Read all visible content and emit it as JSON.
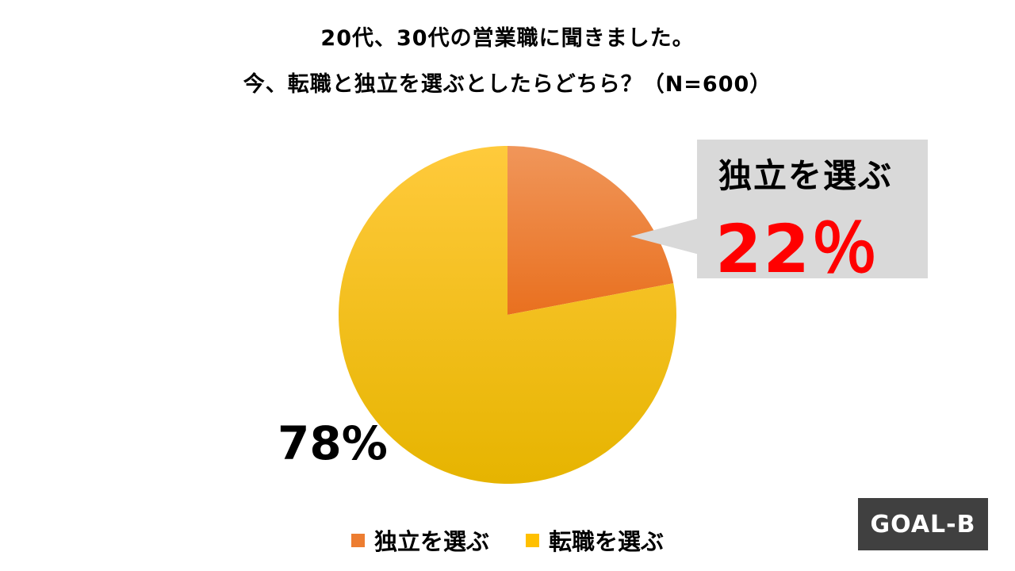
{
  "title": {
    "line1": "20代、30代の営業職に聞きました。",
    "line2": "今、転職と独立を選ぶとしたらどちら？（N=600）"
  },
  "callout": {
    "label": "独立を選ぶ",
    "value": "22％"
  },
  "big_label": "78%",
  "logo_text": "GOAL-B",
  "colors": {
    "independence": "#ed7d31",
    "job_change": "#ffc000",
    "callout_bg": "#d9d9d9",
    "callout_value": "#ff0000",
    "logo_bg": "#404040"
  },
  "chart_data": {
    "type": "pie",
    "title": "今、転職と独立を選ぶとしたらどちら？（N=600）",
    "categories": [
      "独立を選ぶ",
      "転職を選ぶ"
    ],
    "values": [
      22,
      78
    ],
    "legend_position": "bottom"
  }
}
